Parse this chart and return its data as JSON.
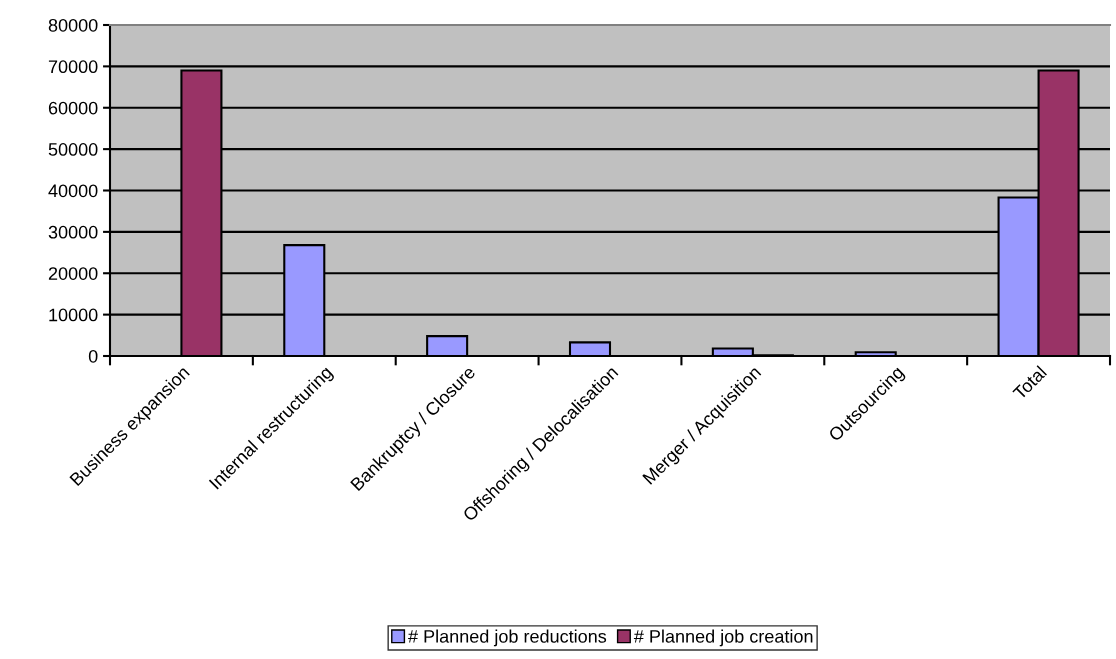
{
  "chart_data": {
    "type": "bar",
    "categories": [
      "Business expansion",
      "Internal restructuring",
      "Bankruptcy / Closure",
      "Offshoring / Delocalisation",
      "Merger / Acquisition",
      "Outsourcing",
      "Total"
    ],
    "series": [
      {
        "name": "# Planned job reductions",
        "color": "#9999ff",
        "values": [
          0,
          26800,
          4800,
          3300,
          1800,
          900,
          38300
        ]
      },
      {
        "name": "# Planned job creation",
        "color": "#993366",
        "values": [
          69000,
          0,
          0,
          0,
          200,
          0,
          69000
        ]
      }
    ],
    "ylim": [
      0,
      80000
    ],
    "yticks": [
      0,
      10000,
      20000,
      30000,
      40000,
      50000,
      60000,
      70000,
      80000
    ],
    "grid": "y",
    "legend": "bottom"
  }
}
